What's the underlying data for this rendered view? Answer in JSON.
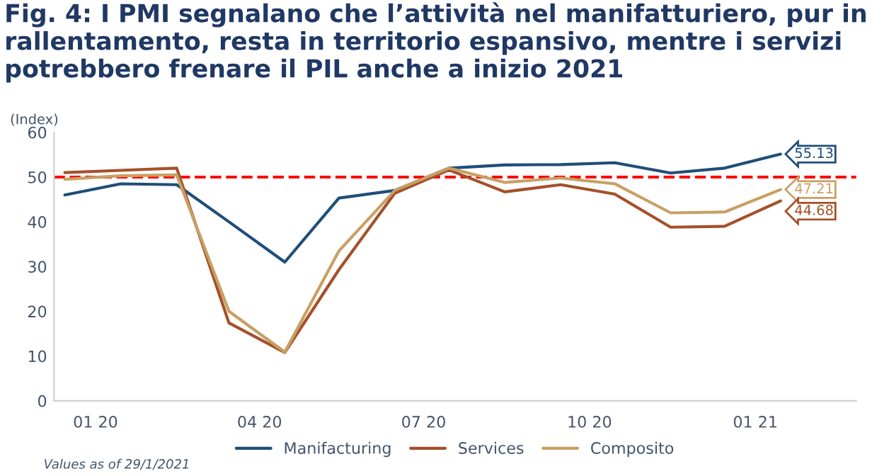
{
  "chart_data": {
    "type": "line",
    "title": "Fig. 4: I PMI segnalano che l’attività nel manifatturiero, pur in rallentamento, resta in territorio espansivo, mentre i servizi potrebbero frenare il PIL anche a inizio 2021",
    "ylabel": "(Index)",
    "x": [
      "2019-12-15",
      "2020-01-15",
      "2020-02-15",
      "2020-03-15",
      "2020-04-15",
      "2020-05-15",
      "2020-06-15",
      "2020-07-15",
      "2020-08-15",
      "2020-09-15",
      "2020-10-15",
      "2020-11-15",
      "2020-12-15",
      "2021-01-15"
    ],
    "series": [
      {
        "name": "Manifacturing",
        "color": "#1f4e79",
        "values": [
          46,
          48.5,
          48.3,
          40,
          31,
          45.3,
          47,
          52,
          52.7,
          52.8,
          53.2,
          50.9,
          52,
          55.13
        ],
        "value_labels": [
          null,
          null,
          null,
          null,
          null,
          null,
          null,
          null,
          null,
          null,
          null,
          null,
          null,
          "55.13"
        ]
      },
      {
        "name": "Services",
        "color": "#a5502a",
        "values": [
          51,
          51.5,
          52,
          17.4,
          10.8,
          29.3,
          46.4,
          51.6,
          46.7,
          48.3,
          46.2,
          38.8,
          39,
          44.68
        ],
        "value_labels": [
          null,
          null,
          null,
          null,
          null,
          null,
          null,
          null,
          null,
          null,
          null,
          null,
          null,
          "44.68"
        ]
      },
      {
        "name": "Composito",
        "color": "#c8a064",
        "values": [
          49.5,
          50.3,
          50.5,
          20,
          10.9,
          33.5,
          47,
          52,
          48.8,
          49.8,
          48.5,
          42,
          42.2,
          47.21
        ],
        "value_labels": [
          null,
          null,
          null,
          null,
          null,
          null,
          null,
          null,
          null,
          null,
          null,
          null,
          null,
          "47.21"
        ]
      }
    ],
    "xlim": [
      "2019-12-09",
      "2021-02-26"
    ],
    "xticks": [
      {
        "value": "2020-01-01",
        "label": "01 20"
      },
      {
        "value": "2020-04-01",
        "label": "04 20"
      },
      {
        "value": "2020-07-01",
        "label": "07 20"
      },
      {
        "value": "2020-10-01",
        "label": "10 20"
      },
      {
        "value": "2021-01-01",
        "label": "01 21"
      }
    ],
    "ylim": [
      0,
      60
    ],
    "yticks": [
      0,
      10,
      20,
      30,
      40,
      50,
      60
    ],
    "ref_lines": [
      {
        "axis": "y",
        "value": 50,
        "color": "#ff0000",
        "line_style": "dashed"
      }
    ],
    "annotations": [
      "Values as of 29/1/2021"
    ],
    "grid": false,
    "legend": "bottom",
    "marker": "none",
    "line_style": "solid"
  }
}
